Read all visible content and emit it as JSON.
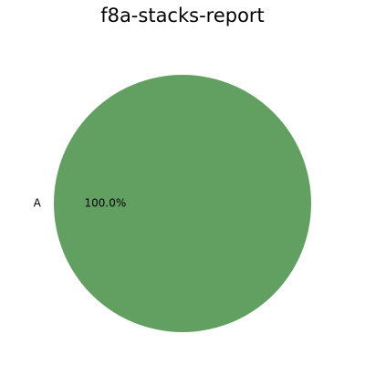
{
  "chart_data": {
    "type": "pie",
    "title": "f8a-stacks-report",
    "labels": [
      "A"
    ],
    "values": [
      100
    ],
    "percent_labels": [
      "100.0%"
    ],
    "colors": [
      "#61a061"
    ],
    "legend": "none"
  }
}
